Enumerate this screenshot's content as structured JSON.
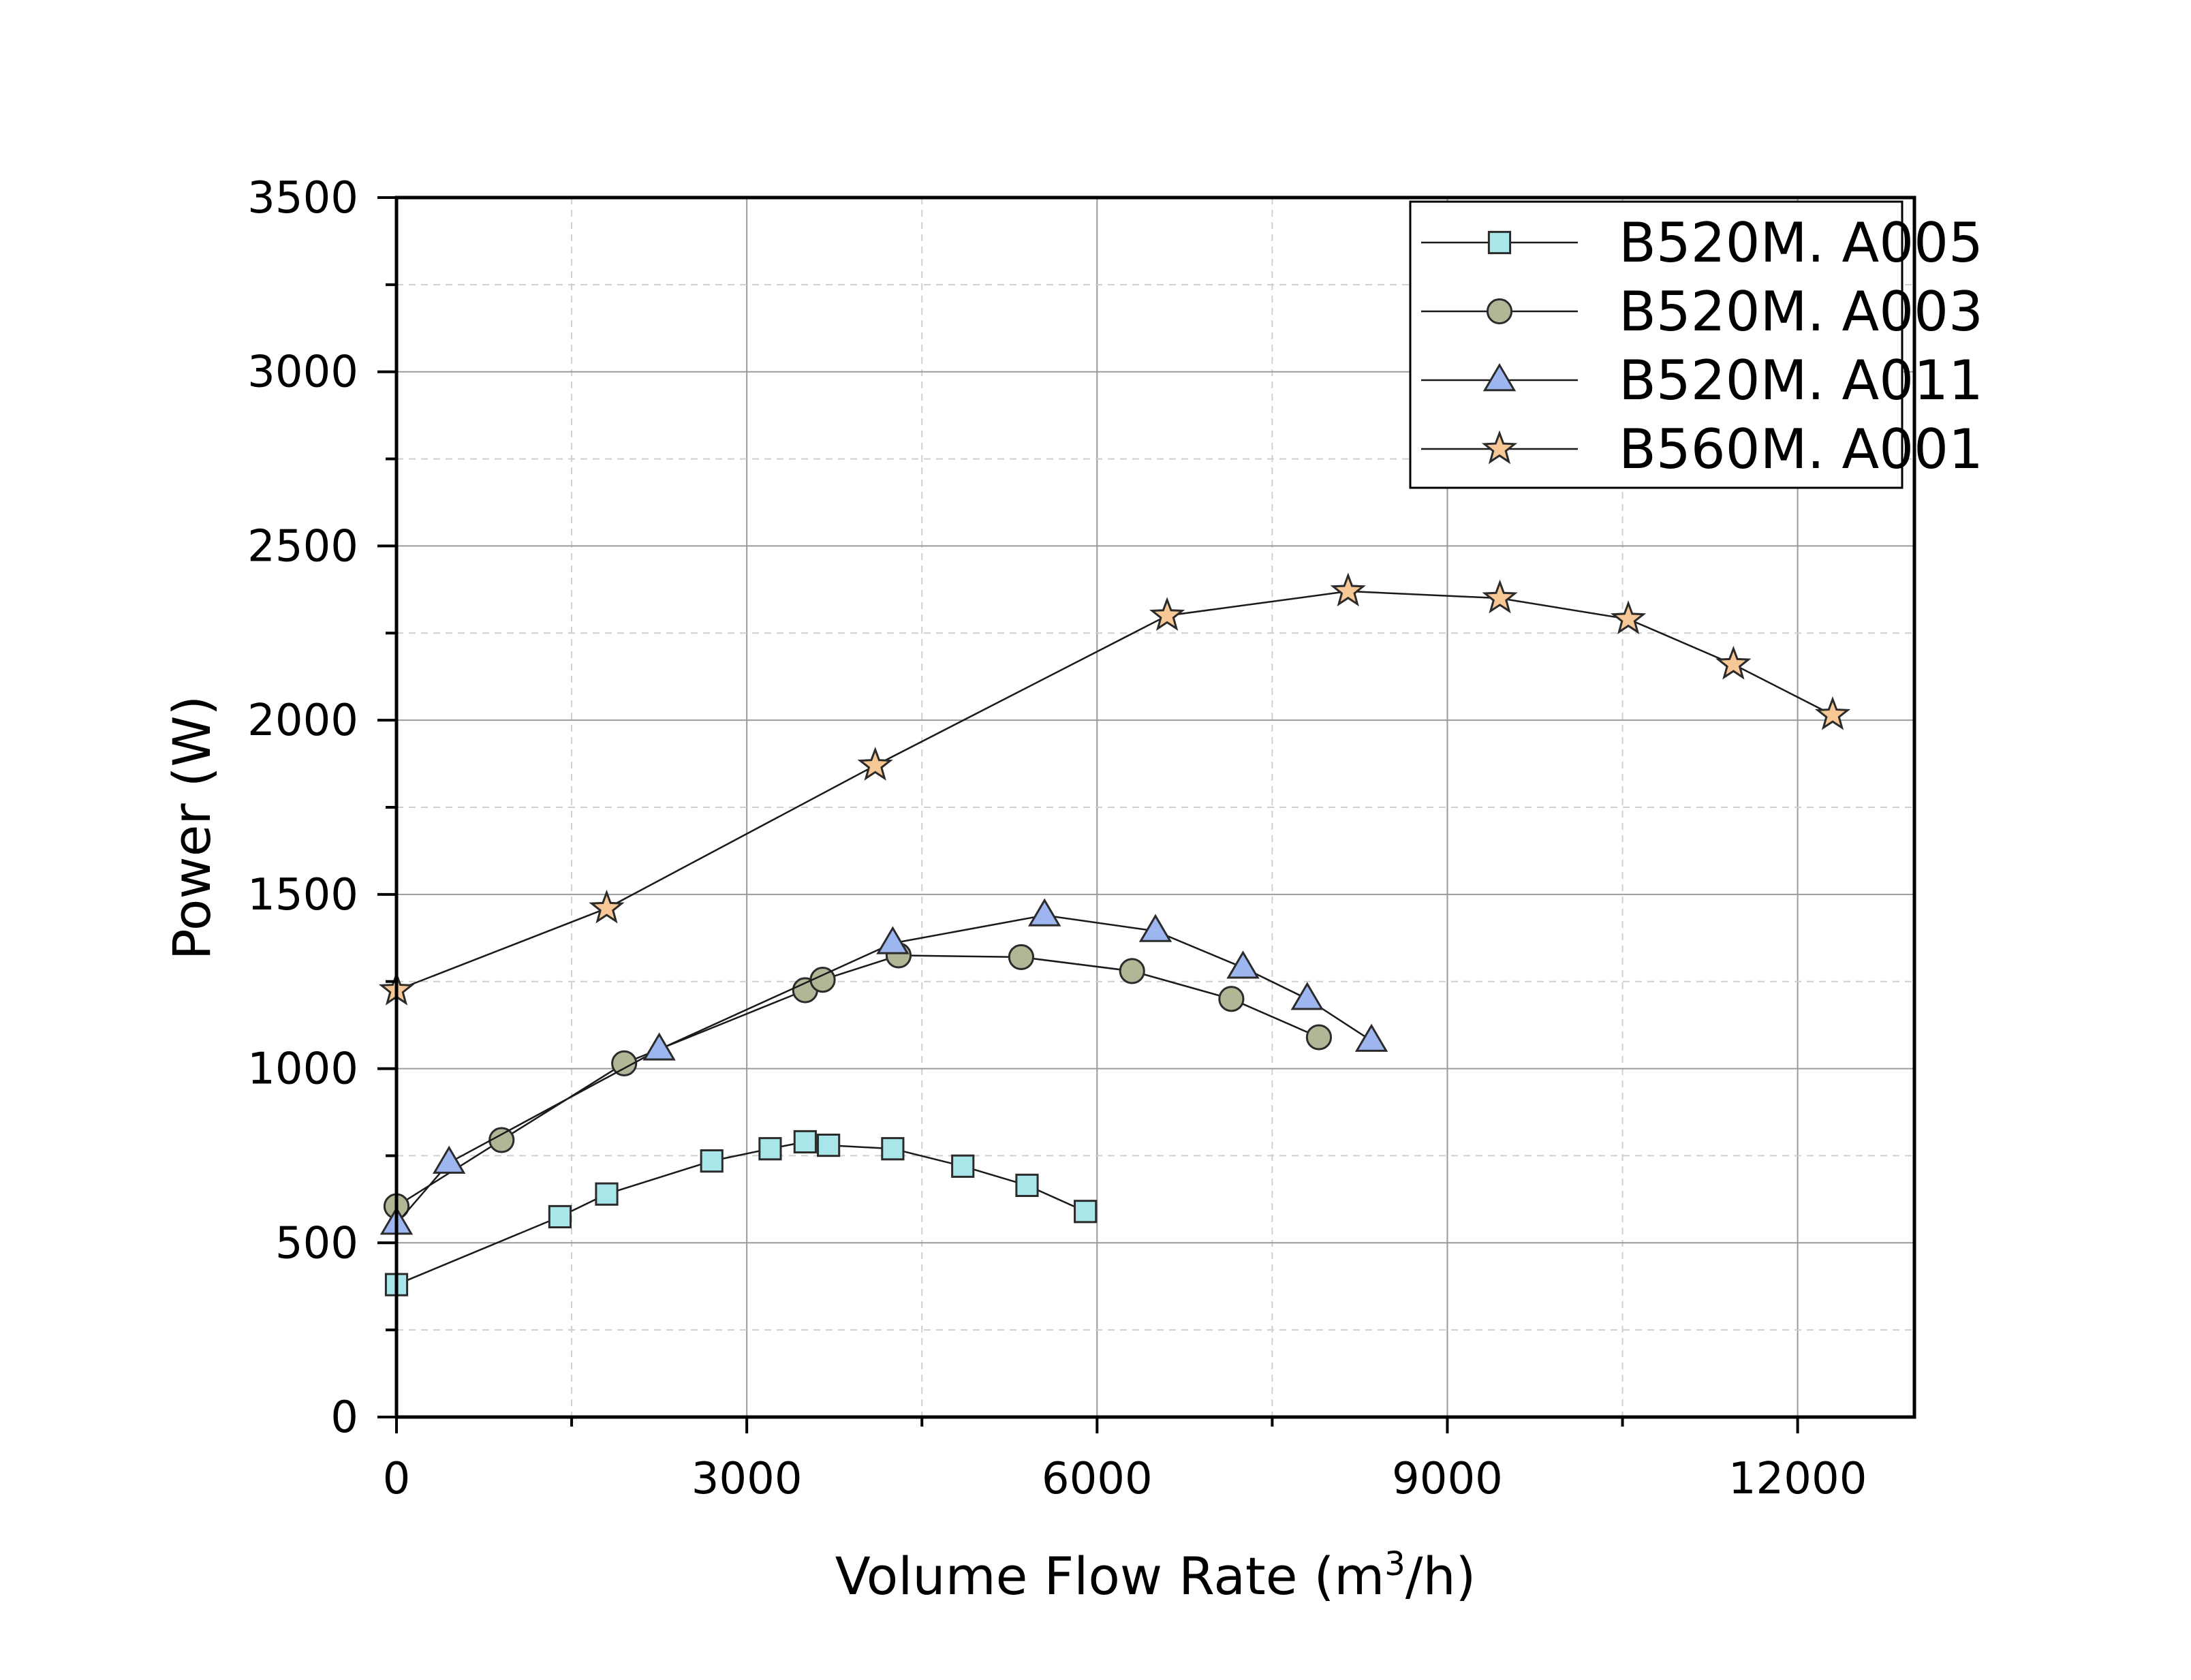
{
  "chart_data": {
    "type": "line",
    "title": "",
    "xlabel": {
      "text": "Volume Flow Rate (m",
      "superscript": "3",
      "suffix": "/h)"
    },
    "ylabel": "Power (W)",
    "xlim": [
      0,
      13000
    ],
    "ylim": [
      0,
      3500
    ],
    "x_ticks": [
      0,
      3000,
      6000,
      9000,
      12000
    ],
    "x_tick_labels": [
      "0",
      "3000",
      "6000",
      "9000",
      "12000"
    ],
    "x_minor_ticks": [
      1500,
      4500,
      7500,
      10500
    ],
    "y_ticks": [
      0,
      500,
      1000,
      1500,
      2000,
      2500,
      3000,
      3500
    ],
    "y_tick_labels": [
      "0",
      "500",
      "1000",
      "1500",
      "2000",
      "2500",
      "3000",
      "3500"
    ],
    "y_minor_ticks": [
      250,
      750,
      1250,
      1750,
      2250,
      2750,
      3250
    ],
    "grid": true,
    "legend_position": "top-right",
    "series": [
      {
        "name": "B520M. A005",
        "marker": "square",
        "color": "#a9e6ea",
        "x": [
          0,
          1400,
          1800,
          2700,
          3200,
          3500,
          3700,
          4250,
          4850,
          5400,
          5900
        ],
        "y": [
          380,
          575,
          640,
          735,
          770,
          790,
          780,
          770,
          720,
          665,
          590
        ]
      },
      {
        "name": "B520M. A003",
        "marker": "circle",
        "color": "#b3b597",
        "x": [
          0,
          900,
          1950,
          3500,
          3650,
          4300,
          5350,
          6300,
          7150,
          7900
        ],
        "y": [
          605,
          795,
          1015,
          1225,
          1255,
          1325,
          1320,
          1280,
          1200,
          1090
        ]
      },
      {
        "name": "B520M. A011",
        "marker": "triangle",
        "color": "#9db6f0",
        "x": [
          0,
          450,
          2250,
          4250,
          5550,
          6500,
          7250,
          7800,
          8350
        ],
        "y": [
          555,
          730,
          1055,
          1360,
          1440,
          1395,
          1290,
          1200,
          1080
        ]
      },
      {
        "name": "B560M. A001",
        "marker": "star",
        "color": "#f7c795",
        "x": [
          0,
          1800,
          4100,
          6600,
          8150,
          9450,
          10550,
          11450,
          12300
        ],
        "y": [
          1225,
          1460,
          1870,
          2300,
          2370,
          2350,
          2290,
          2160,
          2015
        ]
      }
    ]
  }
}
